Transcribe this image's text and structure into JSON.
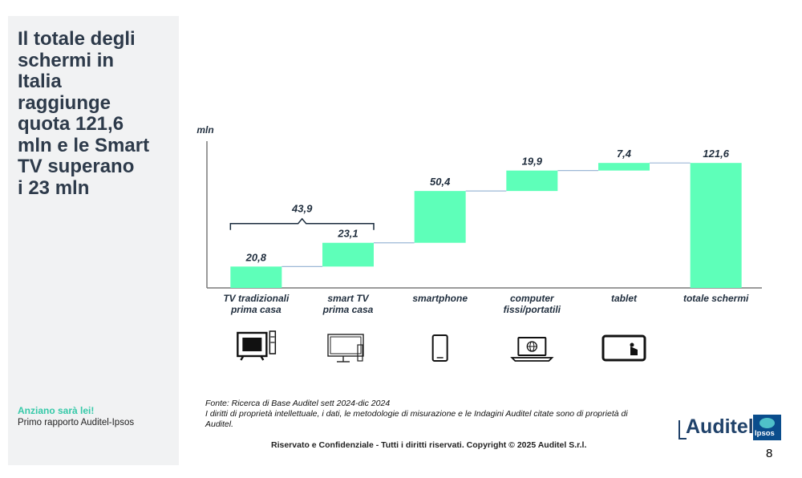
{
  "sidebar": {
    "title": "Il totale degli\nschermi in\nItalia\nraggiunge\nquota 121,6\nmln e le Smart\nTV superano\ni  23 mln",
    "subtitle_accent": "Anziano sarà lei!",
    "subtitle": "Primo rapporto Auditel-Ipsos"
  },
  "chart_data": {
    "type": "bar",
    "subtype": "waterfall",
    "ylabel": "mln",
    "categories": [
      "TV tradizionali\nprima casa",
      "smart TV\nprima casa",
      "smartphone",
      "computer\nfissi/portatili",
      "tablet",
      "totale schermi"
    ],
    "values": [
      20.8,
      23.1,
      50.4,
      19.9,
      7.4,
      121.6
    ],
    "value_labels": [
      "20,8",
      "23,1",
      "50,4",
      "19,9",
      "7,4",
      "121,6"
    ],
    "bracket": {
      "label": "43,9",
      "from": "TV tradizionali\nprima casa",
      "to": "smart TV\nprima casa",
      "value": 43.9
    },
    "ylim": [
      0,
      135
    ],
    "grid": false,
    "legend": "none",
    "colors": {
      "bar": "#5effb9",
      "connector": "#9cb7d6",
      "axis": "#7a7a7a",
      "label": "#1f2d3d"
    },
    "icons": [
      "crt-tv-remote-icon",
      "smart-tv-icon",
      "smartphone-icon",
      "laptop-globe-icon",
      "tablet-touch-icon",
      null
    ]
  },
  "source": {
    "line1": "Fonte: Ricerca di Base Auditel sett 2024-dic 2024",
    "line2": "I diritti di proprietà intellettuale, i dati, le metodologie di misurazione e le Indagini Auditel citate sono di proprietà di Auditel."
  },
  "footer": "Riservato e Confidenziale - Tutti i diritti riservati. Copyright © 2025 Auditel S.r.l.",
  "logos": {
    "auditel": "Auditel",
    "ipsos": "Ipsos"
  },
  "page_number": "8"
}
